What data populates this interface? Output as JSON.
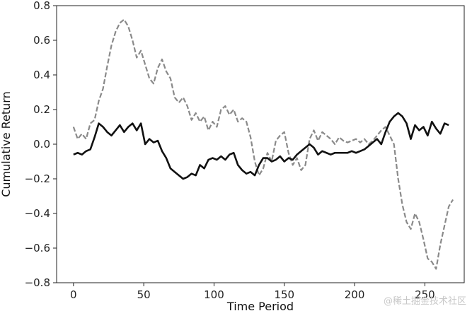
{
  "chart_data": {
    "type": "line",
    "title": "",
    "xlabel": "Time Period",
    "ylabel": "Cumulative Return",
    "xlim": [
      -12,
      278
    ],
    "ylim": [
      -0.8,
      0.8
    ],
    "xticks": [
      0,
      50,
      100,
      150,
      200,
      250
    ],
    "xtick_labels": [
      "0",
      "50",
      "100",
      "150",
      "200",
      "250"
    ],
    "yticks": [
      -0.8,
      -0.6,
      -0.4,
      -0.2,
      0.0,
      0.2,
      0.4,
      0.6,
      0.8
    ],
    "ytick_labels": [
      "−0.8",
      "−0.6",
      "−0.4",
      "−0.2",
      "0.0",
      "0.2",
      "0.4",
      "0.6",
      "0.8"
    ],
    "grid": false,
    "legend": "none",
    "series": [
      {
        "style": "dashed",
        "color": "#8a8a8a",
        "points": [
          [
            0,
            0.1
          ],
          [
            3,
            0.03
          ],
          [
            6,
            0.06
          ],
          [
            9,
            0.03
          ],
          [
            12,
            0.12
          ],
          [
            15,
            0.14
          ],
          [
            18,
            0.25
          ],
          [
            21,
            0.32
          ],
          [
            24,
            0.45
          ],
          [
            27,
            0.57
          ],
          [
            30,
            0.65
          ],
          [
            33,
            0.7
          ],
          [
            36,
            0.72
          ],
          [
            39,
            0.68
          ],
          [
            42,
            0.6
          ],
          [
            45,
            0.5
          ],
          [
            48,
            0.54
          ],
          [
            51,
            0.46
          ],
          [
            54,
            0.38
          ],
          [
            57,
            0.35
          ],
          [
            60,
            0.44
          ],
          [
            63,
            0.49
          ],
          [
            66,
            0.42
          ],
          [
            69,
            0.38
          ],
          [
            72,
            0.27
          ],
          [
            75,
            0.24
          ],
          [
            78,
            0.27
          ],
          [
            81,
            0.22
          ],
          [
            84,
            0.14
          ],
          [
            87,
            0.18
          ],
          [
            90,
            0.13
          ],
          [
            93,
            0.16
          ],
          [
            96,
            0.08
          ],
          [
            99,
            0.13
          ],
          [
            102,
            0.1
          ],
          [
            105,
            0.2
          ],
          [
            108,
            0.22
          ],
          [
            111,
            0.17
          ],
          [
            114,
            0.2
          ],
          [
            117,
            0.13
          ],
          [
            120,
            0.15
          ],
          [
            123,
            0.13
          ],
          [
            126,
            0.04
          ],
          [
            129,
            -0.1
          ],
          [
            132,
            -0.18
          ],
          [
            135,
            -0.14
          ],
          [
            138,
            -0.05
          ],
          [
            141,
            -0.1
          ],
          [
            144,
            0.02
          ],
          [
            147,
            0.05
          ],
          [
            150,
            0.07
          ],
          [
            153,
            -0.05
          ],
          [
            156,
            -0.12
          ],
          [
            159,
            -0.08
          ],
          [
            162,
            -0.15
          ],
          [
            165,
            -0.12
          ],
          [
            168,
            0.03
          ],
          [
            171,
            0.08
          ],
          [
            174,
            0.02
          ],
          [
            177,
            0.07
          ],
          [
            180,
            0.05
          ],
          [
            183,
            0.03
          ],
          [
            186,
            0.0
          ],
          [
            189,
            0.04
          ],
          [
            192,
            0.02
          ],
          [
            195,
            0.01
          ],
          [
            198,
            0.02
          ],
          [
            201,
            0.03
          ],
          [
            204,
            0.01
          ],
          [
            207,
            0.03
          ],
          [
            210,
            0.0
          ],
          [
            213,
            0.02
          ],
          [
            216,
            0.05
          ],
          [
            219,
            0.08
          ],
          [
            222,
            0.1
          ],
          [
            225,
            0.05
          ],
          [
            228,
            0.0
          ],
          [
            231,
            -0.2
          ],
          [
            234,
            -0.35
          ],
          [
            237,
            -0.45
          ],
          [
            240,
            -0.49
          ],
          [
            243,
            -0.4
          ],
          [
            246,
            -0.45
          ],
          [
            249,
            -0.55
          ],
          [
            252,
            -0.66
          ],
          [
            255,
            -0.68
          ],
          [
            258,
            -0.72
          ],
          [
            261,
            -0.58
          ],
          [
            264,
            -0.47
          ],
          [
            267,
            -0.36
          ],
          [
            270,
            -0.32
          ]
        ]
      },
      {
        "style": "solid",
        "color": "#111111",
        "points": [
          [
            0,
            -0.06
          ],
          [
            3,
            -0.05
          ],
          [
            6,
            -0.06
          ],
          [
            9,
            -0.04
          ],
          [
            12,
            -0.03
          ],
          [
            15,
            0.04
          ],
          [
            18,
            0.12
          ],
          [
            21,
            0.1
          ],
          [
            24,
            0.07
          ],
          [
            27,
            0.05
          ],
          [
            30,
            0.08
          ],
          [
            33,
            0.11
          ],
          [
            36,
            0.07
          ],
          [
            39,
            0.1
          ],
          [
            42,
            0.12
          ],
          [
            45,
            0.08
          ],
          [
            48,
            0.12
          ],
          [
            51,
            0.0
          ],
          [
            54,
            0.03
          ],
          [
            57,
            0.01
          ],
          [
            60,
            0.02
          ],
          [
            63,
            -0.04
          ],
          [
            66,
            -0.08
          ],
          [
            69,
            -0.14
          ],
          [
            72,
            -0.16
          ],
          [
            75,
            -0.18
          ],
          [
            78,
            -0.2
          ],
          [
            81,
            -0.19
          ],
          [
            84,
            -0.17
          ],
          [
            87,
            -0.18
          ],
          [
            90,
            -0.12
          ],
          [
            93,
            -0.14
          ],
          [
            96,
            -0.09
          ],
          [
            99,
            -0.08
          ],
          [
            102,
            -0.09
          ],
          [
            105,
            -0.07
          ],
          [
            108,
            -0.09
          ],
          [
            111,
            -0.06
          ],
          [
            114,
            -0.05
          ],
          [
            117,
            -0.12
          ],
          [
            120,
            -0.15
          ],
          [
            123,
            -0.17
          ],
          [
            126,
            -0.16
          ],
          [
            129,
            -0.18
          ],
          [
            132,
            -0.12
          ],
          [
            135,
            -0.08
          ],
          [
            138,
            -0.08
          ],
          [
            141,
            -0.1
          ],
          [
            144,
            -0.09
          ],
          [
            147,
            -0.07
          ],
          [
            150,
            -0.1
          ],
          [
            153,
            -0.08
          ],
          [
            156,
            -0.09
          ],
          [
            159,
            -0.06
          ],
          [
            162,
            -0.04
          ],
          [
            165,
            -0.02
          ],
          [
            168,
            0.0
          ],
          [
            171,
            -0.02
          ],
          [
            174,
            -0.06
          ],
          [
            177,
            -0.04
          ],
          [
            180,
            -0.05
          ],
          [
            183,
            -0.06
          ],
          [
            186,
            -0.05
          ],
          [
            189,
            -0.05
          ],
          [
            192,
            -0.05
          ],
          [
            195,
            -0.05
          ],
          [
            198,
            -0.04
          ],
          [
            201,
            -0.05
          ],
          [
            204,
            -0.04
          ],
          [
            207,
            -0.03
          ],
          [
            210,
            -0.01
          ],
          [
            213,
            0.01
          ],
          [
            216,
            0.03
          ],
          [
            219,
            0.0
          ],
          [
            222,
            0.07
          ],
          [
            225,
            0.13
          ],
          [
            228,
            0.16
          ],
          [
            231,
            0.18
          ],
          [
            234,
            0.16
          ],
          [
            237,
            0.12
          ],
          [
            240,
            0.03
          ],
          [
            243,
            0.11
          ],
          [
            246,
            0.08
          ],
          [
            249,
            0.1
          ],
          [
            252,
            0.05
          ],
          [
            255,
            0.13
          ],
          [
            258,
            0.09
          ],
          [
            261,
            0.06
          ],
          [
            264,
            0.12
          ],
          [
            267,
            0.11
          ]
        ]
      }
    ]
  },
  "watermark": "@稀土掘金技术社区"
}
